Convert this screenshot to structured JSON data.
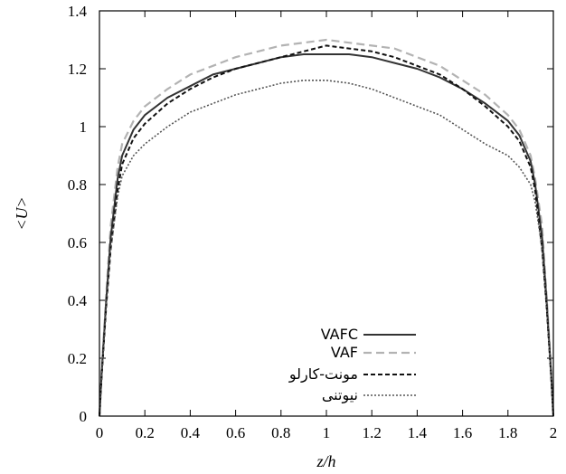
{
  "chart_data": {
    "type": "line",
    "title": "",
    "xlabel": "z/h",
    "ylabel": "<U>",
    "xlim": [
      0,
      2
    ],
    "ylim": [
      0,
      1.4
    ],
    "x_ticks": [
      "0",
      "0.2",
      "0.4",
      "0.6",
      "0.8",
      "1",
      "1.2",
      "1.4",
      "1.6",
      "1.8",
      "2"
    ],
    "y_ticks": [
      "0",
      "0.2",
      "0.4",
      "0.6",
      "0.8",
      "1",
      "1.2",
      "1.4"
    ],
    "grid": false,
    "legend_position": "bottom-right",
    "x": [
      0,
      0.01,
      0.03,
      0.05,
      0.08,
      0.1,
      0.15,
      0.2,
      0.3,
      0.4,
      0.5,
      0.6,
      0.7,
      0.8,
      0.9,
      1,
      1.1,
      1.2,
      1.3,
      1.4,
      1.5,
      1.6,
      1.7,
      1.8,
      1.85,
      1.9,
      1.92,
      1.95,
      1.97,
      1.99,
      2
    ],
    "series": [
      {
        "name": "VAFC",
        "style": "solid",
        "color": "#333333",
        "values": [
          0,
          0.15,
          0.4,
          0.62,
          0.82,
          0.9,
          0.99,
          1.04,
          1.1,
          1.14,
          1.18,
          1.2,
          1.22,
          1.24,
          1.25,
          1.25,
          1.25,
          1.24,
          1.22,
          1.2,
          1.17,
          1.13,
          1.08,
          1.02,
          0.97,
          0.88,
          0.8,
          0.62,
          0.4,
          0.15,
          0
        ]
      },
      {
        "name": "VAF",
        "style": "dashed",
        "color": "#b3b3b3",
        "values": [
          0,
          0.16,
          0.42,
          0.66,
          0.86,
          0.94,
          1.02,
          1.07,
          1.13,
          1.18,
          1.21,
          1.24,
          1.26,
          1.28,
          1.29,
          1.3,
          1.29,
          1.28,
          1.27,
          1.24,
          1.21,
          1.16,
          1.11,
          1.04,
          0.99,
          0.9,
          0.82,
          0.66,
          0.42,
          0.16,
          0
        ]
      },
      {
        "name": "مونت-کارلو",
        "style": "dashed",
        "color": "#111111",
        "values": [
          0,
          0.14,
          0.38,
          0.58,
          0.78,
          0.87,
          0.96,
          1.01,
          1.08,
          1.13,
          1.17,
          1.2,
          1.22,
          1.24,
          1.26,
          1.28,
          1.27,
          1.26,
          1.24,
          1.21,
          1.18,
          1.13,
          1.07,
          1.0,
          0.95,
          0.86,
          0.78,
          0.58,
          0.38,
          0.14,
          0
        ]
      },
      {
        "name": "نیوتنی",
        "style": "dotted",
        "color": "#555555",
        "values": [
          0,
          0.14,
          0.38,
          0.58,
          0.76,
          0.83,
          0.9,
          0.94,
          1.0,
          1.05,
          1.08,
          1.11,
          1.13,
          1.15,
          1.16,
          1.16,
          1.15,
          1.13,
          1.1,
          1.07,
          1.04,
          0.99,
          0.94,
          0.9,
          0.86,
          0.8,
          0.74,
          0.58,
          0.38,
          0.14,
          0
        ]
      }
    ]
  }
}
